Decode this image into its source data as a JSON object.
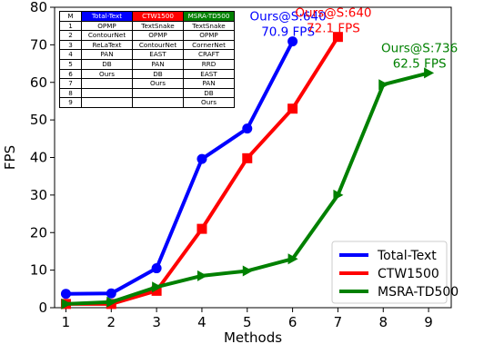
{
  "chart_data": {
    "type": "line",
    "xlabel": "Methods",
    "ylabel": "FPS",
    "xlim": [
      0.75,
      9.5
    ],
    "ylim": [
      0,
      80
    ],
    "xticks": [
      1,
      2,
      3,
      4,
      5,
      6,
      7,
      8,
      9
    ],
    "yticks": [
      0,
      10,
      20,
      30,
      40,
      50,
      60,
      70,
      80
    ],
    "grid": false,
    "legend_position": "bottom-right",
    "series": [
      {
        "name": "Total-Text",
        "color": "#0000ff",
        "marker": "circle",
        "x": [
          1,
          2,
          3,
          4,
          5,
          6
        ],
        "y": [
          3.7,
          3.8,
          10.5,
          39.6,
          47.7,
          70.9
        ]
      },
      {
        "name": "CTW1500",
        "color": "#ff0000",
        "marker": "square",
        "x": [
          1,
          2,
          3,
          4,
          5,
          6,
          7
        ],
        "y": [
          1.0,
          1.0,
          4.5,
          21.0,
          39.8,
          53.0,
          72.1
        ]
      },
      {
        "name": "MSRA-TD500",
        "color": "#008000",
        "marker": "triangle-right",
        "x": [
          1,
          2,
          3,
          4,
          5,
          6,
          7,
          8,
          9
        ],
        "y": [
          1.0,
          1.5,
          5.5,
          8.5,
          9.8,
          13.0,
          30.0,
          59.4,
          62.5
        ]
      }
    ],
    "annotations": [
      {
        "line1": "Ours@S:640",
        "line2": "70.9 FPS",
        "color": "#0000ff",
        "x": 5.9,
        "y": 76.5
      },
      {
        "line1": "Ours@S:640",
        "line2": "72.1 FPS",
        "color": "#ff0000",
        "x": 6.9,
        "y": 77.5
      },
      {
        "line1": "Ours@S:736",
        "line2": "62.5 FPS",
        "color": "#008000",
        "x": 8.8,
        "y": 68.0
      }
    ]
  },
  "table": {
    "header": [
      {
        "label": "M",
        "bg": "#ffffff"
      },
      {
        "label": "Total-Text",
        "bg": "#0000ff"
      },
      {
        "label": "CTW1500",
        "bg": "#ff0000"
      },
      {
        "label": "MSRA-TD500",
        "bg": "#008000"
      }
    ],
    "rows": [
      [
        "1",
        "OPMP",
        "TextSnake",
        "TextSnake"
      ],
      [
        "2",
        "ContourNet",
        "OPMP",
        "OPMP"
      ],
      [
        "3",
        "ReLaText",
        "ContourNet",
        "CornerNet"
      ],
      [
        "4",
        "PAN",
        "EAST",
        "CRAFT"
      ],
      [
        "5",
        "DB",
        "PAN",
        "RRD"
      ],
      [
        "6",
        "Ours",
        "DB",
        "EAST"
      ],
      [
        "7",
        "",
        "Ours",
        "PAN"
      ],
      [
        "8",
        "",
        "",
        "DB"
      ],
      [
        "9",
        "",
        "",
        "Ours"
      ]
    ]
  }
}
